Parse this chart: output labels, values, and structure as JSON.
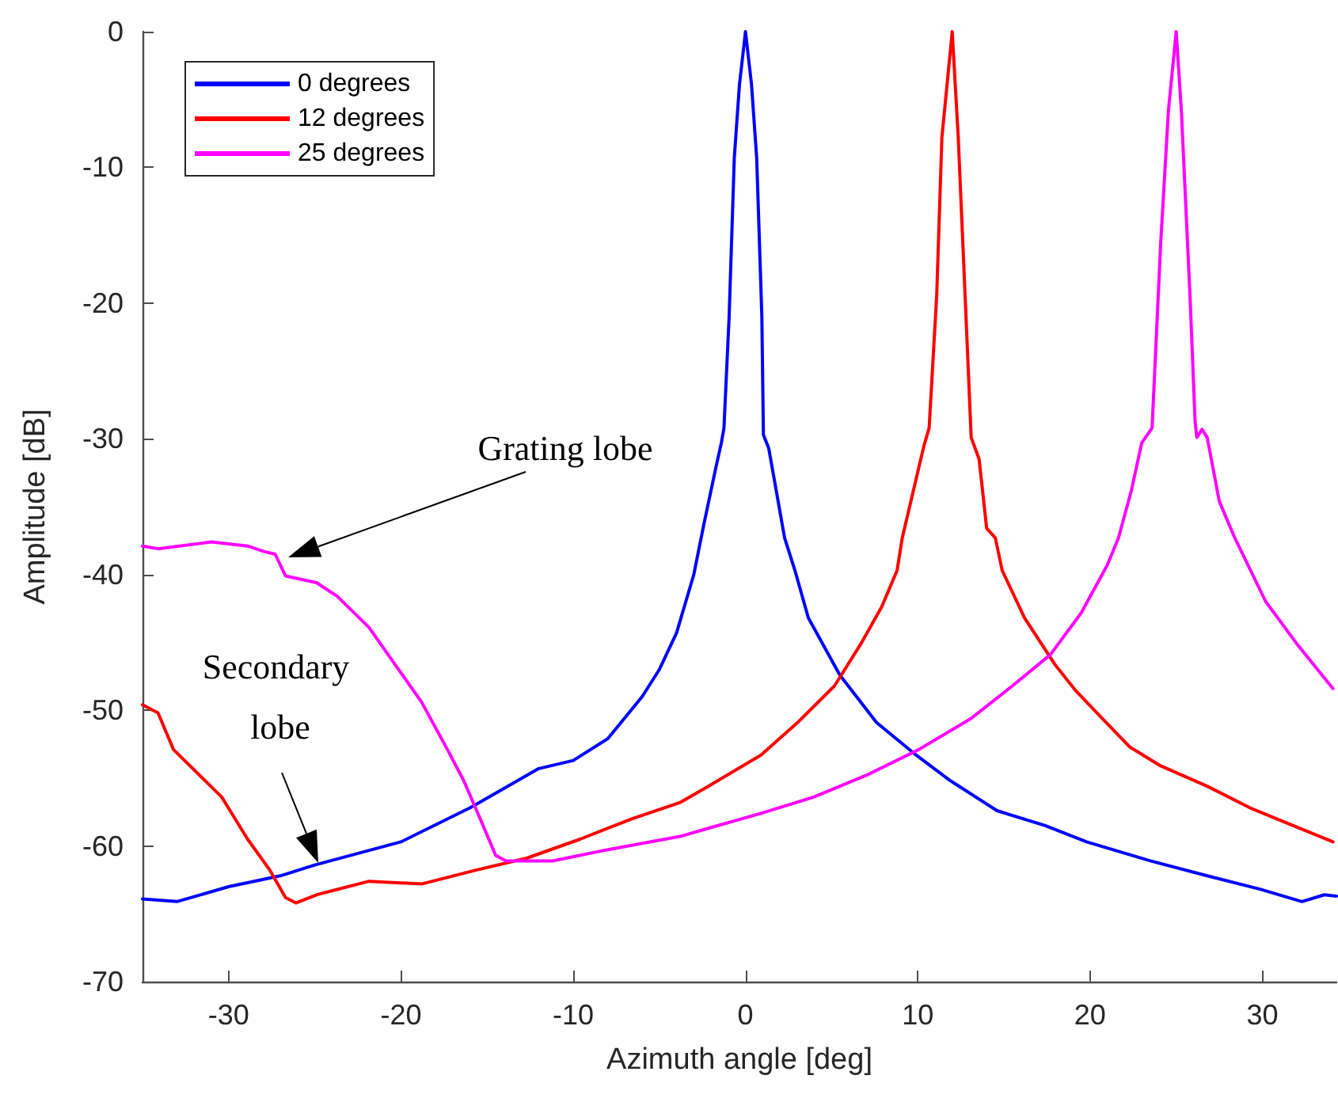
{
  "chart_data": {
    "type": "line",
    "xlabel": "Azimuth angle [deg]",
    "ylabel": "Amplitude [dB]",
    "xlim": [
      -35,
      34.3
    ],
    "xticks": [
      -30,
      -20,
      -10,
      0,
      10,
      20,
      30
    ],
    "ylim": [
      -70,
      0
    ],
    "yticks": [
      -70,
      -60,
      -50,
      -40,
      -30,
      -20,
      -10,
      0
    ],
    "grid": false,
    "legend": "top left",
    "marker": "none",
    "line_style": "solid",
    "annotations": [
      "Grating lobe",
      "Secondary lobe"
    ],
    "series": [
      {
        "name": "0 degrees",
        "color": "#0000ff",
        "x": [
          -35,
          -33,
          -30,
          -27,
          -25,
          -20,
          -16,
          -12,
          -10,
          -8,
          -6,
          -5,
          -4,
          -3,
          -2.4,
          -1.7,
          -1.4,
          -1.25,
          -0.95,
          -0.65,
          -0.35,
          0,
          0.35,
          0.65,
          0.95,
          1.04,
          1.35,
          2.27,
          2.87,
          3.65,
          5.47,
          7.6,
          9.9,
          11.9,
          14.6,
          17.4,
          19.8,
          23.5,
          26.8,
          29.9,
          32.3,
          33.6,
          34.3
        ],
        "values": [
          -63.9,
          -64.1,
          -63,
          -62.2,
          -61.4,
          -59.7,
          -57.2,
          -54.3,
          -53.7,
          -52.1,
          -49,
          -47,
          -44.3,
          -40,
          -36.2,
          -32,
          -30.3,
          -29.2,
          -21,
          -9.3,
          -3.9,
          0,
          -3.9,
          -9.3,
          -21,
          -29.7,
          -30.7,
          -37.3,
          -39.7,
          -43.2,
          -47.4,
          -50.9,
          -53.3,
          -55.2,
          -57.4,
          -58.5,
          -59.7,
          -61.1,
          -62.2,
          -63.2,
          -64.1,
          -63.6,
          -63.7
        ]
      },
      {
        "name": "12 degrees",
        "color": "#ff0000",
        "x": [
          -35,
          -34.1,
          -33.2,
          -30.4,
          -28.9,
          -27.6,
          -26.7,
          -26.1,
          -24.9,
          -21.85,
          -18.8,
          -15.7,
          -12.7,
          -9.6,
          -6.6,
          -3.8,
          -2.16,
          0.9,
          3.03,
          5.17,
          6.7,
          7.9,
          8.8,
          9.1,
          10.36,
          10.66,
          11.1,
          11.4,
          12,
          12.35,
          12.8,
          13.1,
          13.56,
          14,
          14.5,
          14.9,
          16.2,
          18,
          19.2,
          20.7,
          22.3,
          24.1,
          26.8,
          29.3,
          31.4,
          34.1
        ],
        "values": [
          -49.6,
          -50.2,
          -52.9,
          -56.4,
          -59.5,
          -61.8,
          -63.8,
          -64.2,
          -63.6,
          -62.6,
          -62.8,
          -61.8,
          -60.9,
          -59.5,
          -58,
          -56.8,
          -55.6,
          -53.3,
          -50.9,
          -48.2,
          -45.1,
          -42.4,
          -39.7,
          -37.3,
          -30.5,
          -29.2,
          -19.4,
          -7.8,
          0,
          -7.8,
          -21,
          -29.9,
          -31.5,
          -36.6,
          -37.3,
          -39.7,
          -43.2,
          -46.7,
          -48.6,
          -50.6,
          -52.7,
          -54.1,
          -55.6,
          -57.2,
          -58.3,
          -59.7
        ]
      },
      {
        "name": "25 degrees",
        "color": "#ff00ff",
        "x": [
          -35,
          -34.1,
          -31,
          -28.9,
          -27.95,
          -27.3,
          -26.7,
          -24.9,
          -23.7,
          -21.85,
          -20.3,
          -18.8,
          -17.3,
          -16.35,
          -15.4,
          -14.5,
          -13.9,
          -11.2,
          -8.1,
          -3.8,
          -2.16,
          0.9,
          3.95,
          7,
          10.05,
          13.1,
          15.5,
          17.7,
          19.5,
          21,
          21.65,
          22.4,
          23,
          23.6,
          24.1,
          24.55,
          25,
          25.3,
          25.8,
          26.1,
          26.2,
          26.5,
          26.8,
          27.5,
          28.4,
          30.2,
          32,
          34.1
        ],
        "values": [
          -37.9,
          -38.1,
          -37.6,
          -37.9,
          -38.3,
          -38.5,
          -40.1,
          -40.6,
          -41.6,
          -43.9,
          -46.7,
          -49.4,
          -52.9,
          -55.2,
          -58,
          -60.7,
          -61.1,
          -61.1,
          -60.3,
          -59.3,
          -58.7,
          -57.6,
          -56.4,
          -54.8,
          -52.9,
          -50.6,
          -48.2,
          -45.9,
          -42.8,
          -39.3,
          -37.3,
          -33.8,
          -30.3,
          -29.2,
          -15.6,
          -5.8,
          0,
          -5.8,
          -19.4,
          -28.8,
          -29.9,
          -29.3,
          -29.9,
          -34.6,
          -37.3,
          -42,
          -45.1,
          -48.4
        ]
      }
    ]
  }
}
